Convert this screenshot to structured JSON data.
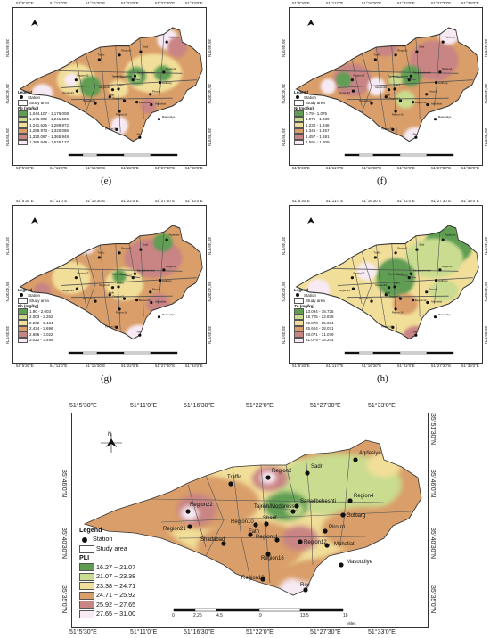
{
  "panels": [
    {
      "id": "e",
      "caption": "(e)",
      "x_ticks": [
        "51°5'30\"E",
        "51°11'0\"E",
        "51°16'30\"E",
        "51°22'0\"E",
        "51°27'30\"E",
        "51°33'0\"E"
      ],
      "y_ticks_left": [
        "35°46'0\"N",
        "35°40'30\"N",
        "35°35'0\"N"
      ],
      "legend_title": "Legend",
      "legend_station": "Station",
      "legend_study_area": "Study area",
      "variable": "Pb (mg/kg)",
      "classes": [
        "1,044.107 - 1,176.008",
        "1,176.009 - 1,241.626",
        "1,241.626 - 1,289.972",
        "1,289.973 - 1,320.086",
        "1,320.087 - 1,365.948",
        "1,365.949 - 1,525.127"
      ]
    },
    {
      "id": "f",
      "caption": "(f)",
      "x_ticks": [
        "51°5'30\"E",
        "51°11'0\"E",
        "51°16'30\"E",
        "51°22'0\"E",
        "51°27'30\"E",
        "51°33'0\"E"
      ],
      "y_ticks_left": [
        "35°46'0\"N",
        "35°40'30\"N",
        "35°35'0\"N"
      ],
      "legend_title": "Legend",
      "legend_station": "Station",
      "legend_study_area": "Study area",
      "variable": "Ni (mg/kg)",
      "classes": [
        "0.79 - 1.075",
        "1.075 - 1.230",
        "1.230 - 1.346",
        "1.346 - 1.457",
        "1.457 - 1.591",
        "1.591 - 1.809"
      ]
    },
    {
      "id": "g",
      "caption": "(g)",
      "x_ticks": [
        "51°5'30\"E",
        "51°11'0\"E",
        "51°16'30\"E",
        "51°22'0\"E",
        "51°27'30\"E",
        "51°33'0\"E"
      ],
      "y_ticks_left": [
        "35°46'0\"N",
        "35°40'30\"N",
        "35°35'0\"N"
      ],
      "legend_title": "Legend",
      "legend_station": "Station",
      "legend_study_area": "Study area",
      "variable": "Pb (mg/kg)",
      "classes": [
        "1.90 - 2.003",
        "2.003 - 2.262",
        "2.262 - 2.434",
        "2.434 - 2.696",
        "2.696 - 3.022",
        "3.022 - 3.495"
      ]
    },
    {
      "id": "h",
      "caption": "(h)",
      "x_ticks": [
        "51°5'30\"E",
        "51°11'0\"E",
        "51°16'30\"E",
        "51°22'0\"E",
        "51°27'30\"E",
        "51°33'0\"E"
      ],
      "y_ticks_left": [
        "35°46'0\"N",
        "35°40'30\"N",
        "35°35'0\"N"
      ],
      "legend_title": "Legend",
      "legend_station": "Station",
      "legend_study_area": "Study area",
      "variable": "Zn (mg/kg)",
      "classes": [
        "13.094 - 18.725",
        "18.725 - 22.878",
        "22.878 - 25.604",
        "25.604 - 28.071",
        "28.071 - 31.079",
        "31.079 - 35.204"
      ]
    }
  ],
  "main_map": {
    "x_ticks": [
      "51°5'30\"E",
      "51°11'0\"E",
      "51°16'30\"E",
      "51°22'0\"E",
      "51°27'30\"E",
      "51°33'0\"E"
    ],
    "y_ticks": [
      "35°46'0\"N",
      "35°40'30\"N",
      "35°35'0\"N"
    ],
    "y_tick_top_right": "35°51'30\"N",
    "north": "N",
    "legend_title": "Legend",
    "legend_station": "Station",
    "legend_study_area": "Study area",
    "variable": "PLI",
    "classes": [
      "16.27 ~ 21.07",
      "21.07 ~ 23.38",
      "23.38 ~ 24.71",
      "24.71 ~ 25.92",
      "25.92 ~ 27.65",
      "27.65 ~ 31.00"
    ],
    "scale_labels": [
      "0",
      "2.25",
      "4.5",
      "9",
      "13.5",
      "18"
    ],
    "scale_unit": "Miles",
    "stations": [
      {
        "name": "Region22"
      },
      {
        "name": "Region21"
      },
      {
        "name": "Region2"
      },
      {
        "name": "Traffic"
      },
      {
        "name": "Sadr"
      },
      {
        "name": "Aqdasiye"
      },
      {
        "name": "Region4"
      },
      {
        "name": "Golbarg"
      },
      {
        "name": "Sanadbeheshti"
      },
      {
        "name": "Tajrish/Modaress"
      },
      {
        "name": "Sharif"
      },
      {
        "name": "Region10"
      },
      {
        "name": "Fath"
      },
      {
        "name": "Shadabad"
      },
      {
        "name": "Region11"
      },
      {
        "name": "Region12"
      },
      {
        "name": "Region16"
      },
      {
        "name": "Pirouzi"
      },
      {
        "name": "Mahallati"
      },
      {
        "name": "Region19"
      },
      {
        "name": "Masoudiye"
      },
      {
        "name": "Rey"
      }
    ]
  },
  "colors": {
    "class1": "#5f9e52",
    "class2": "#c9dc8f",
    "class3": "#f1de99",
    "class4": "#d99e69",
    "class5": "#c98484",
    "class6": "#f7eaf4",
    "boundary": "#333333",
    "roads": "#555555"
  }
}
